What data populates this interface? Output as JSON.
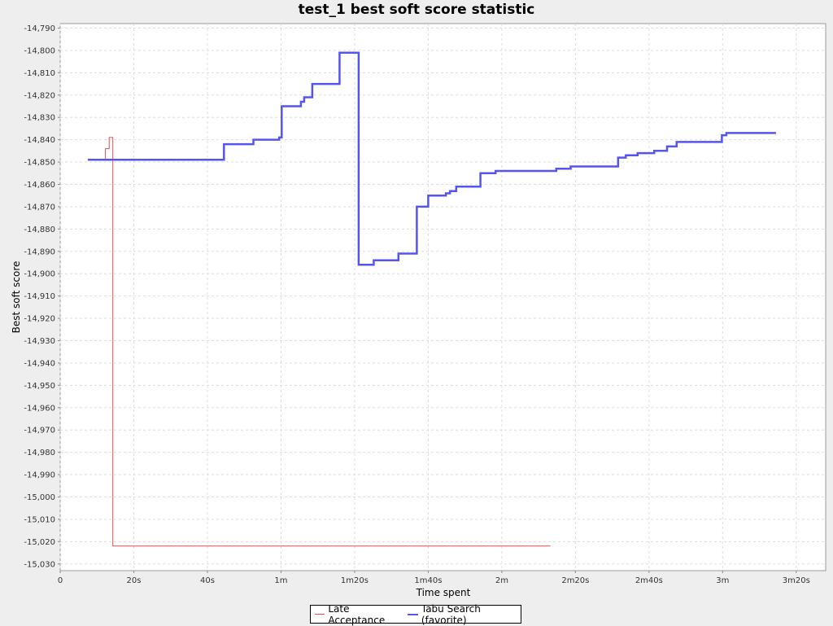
{
  "chart_data": {
    "type": "line",
    "title": "test_1 best soft score statistic",
    "xlabel": "Time spent",
    "ylabel": "Best soft score",
    "xlim": [
      0,
      208
    ],
    "ylim": [
      -15033,
      -14788
    ],
    "grid": true,
    "legend_position": "bottom",
    "x_ticks": [
      {
        "value": 0,
        "label": "0"
      },
      {
        "value": 20,
        "label": "20s"
      },
      {
        "value": 40,
        "label": "40s"
      },
      {
        "value": 60,
        "label": "1m"
      },
      {
        "value": 80,
        "label": "1m20s"
      },
      {
        "value": 100,
        "label": "1m40s"
      },
      {
        "value": 120,
        "label": "2m"
      },
      {
        "value": 140,
        "label": "2m20s"
      },
      {
        "value": 160,
        "label": "2m40s"
      },
      {
        "value": 180,
        "label": "3m"
      },
      {
        "value": 200,
        "label": "3m20s"
      }
    ],
    "y_ticks": [
      {
        "value": -14790,
        "label": "-14,790"
      },
      {
        "value": -14800,
        "label": "-14,800"
      },
      {
        "value": -14810,
        "label": "-14,810"
      },
      {
        "value": -14820,
        "label": "-14,820"
      },
      {
        "value": -14830,
        "label": "-14,830"
      },
      {
        "value": -14840,
        "label": "-14,840"
      },
      {
        "value": -14850,
        "label": "-14,850"
      },
      {
        "value": -14860,
        "label": "-14,860"
      },
      {
        "value": -14870,
        "label": "-14,870"
      },
      {
        "value": -14880,
        "label": "-14,880"
      },
      {
        "value": -14890,
        "label": "-14,890"
      },
      {
        "value": -14900,
        "label": "-14,900"
      },
      {
        "value": -14910,
        "label": "-14,910"
      },
      {
        "value": -14920,
        "label": "-14,920"
      },
      {
        "value": -14930,
        "label": "-14,930"
      },
      {
        "value": -14940,
        "label": "-14,940"
      },
      {
        "value": -14950,
        "label": "-14,950"
      },
      {
        "value": -14960,
        "label": "-14,960"
      },
      {
        "value": -14970,
        "label": "-14,970"
      },
      {
        "value": -14980,
        "label": "-14,980"
      },
      {
        "value": -14990,
        "label": "-14,990"
      },
      {
        "value": -15000,
        "label": "-15,000"
      },
      {
        "value": -15010,
        "label": "-15,010"
      },
      {
        "value": -15020,
        "label": "-15,020"
      },
      {
        "value": -15030,
        "label": "-15,030"
      }
    ],
    "series": [
      {
        "name": "Late Acceptance",
        "color": "#e05050",
        "stroke": 1,
        "points": [
          [
            9.7,
            -14849
          ],
          [
            12.3,
            -14849
          ],
          [
            12.3,
            -14844
          ],
          [
            13.3,
            -14844
          ],
          [
            13.3,
            -14839
          ],
          [
            14.3,
            -14839
          ],
          [
            14.3,
            -15022
          ],
          [
            133.2,
            -15022
          ]
        ]
      },
      {
        "name": "Tabu Search (favorite)",
        "color": "#5555ee",
        "stroke": 2.5,
        "points": [
          [
            7.5,
            -14849
          ],
          [
            44.5,
            -14849
          ],
          [
            44.5,
            -14842
          ],
          [
            52.5,
            -14842
          ],
          [
            52.5,
            -14840
          ],
          [
            59.5,
            -14840
          ],
          [
            59.5,
            -14839
          ],
          [
            60.2,
            -14839
          ],
          [
            60.2,
            -14825
          ],
          [
            65.4,
            -14825
          ],
          [
            65.4,
            -14823
          ],
          [
            66.3,
            -14823
          ],
          [
            66.3,
            -14821
          ],
          [
            68.5,
            -14821
          ],
          [
            68.5,
            -14815
          ],
          [
            75.9,
            -14815
          ],
          [
            75.9,
            -14801
          ],
          [
            81.1,
            -14801
          ],
          [
            81.1,
            -14896
          ],
          [
            85.2,
            -14896
          ],
          [
            85.2,
            -14894
          ],
          [
            91.9,
            -14894
          ],
          [
            91.9,
            -14891
          ],
          [
            96.9,
            -14891
          ],
          [
            96.9,
            -14870
          ],
          [
            100.0,
            -14870
          ],
          [
            100.0,
            -14865
          ],
          [
            104.8,
            -14865
          ],
          [
            104.8,
            -14864
          ],
          [
            105.9,
            -14864
          ],
          [
            105.9,
            -14863
          ],
          [
            107.6,
            -14863
          ],
          [
            107.6,
            -14861
          ],
          [
            114.2,
            -14861
          ],
          [
            114.2,
            -14855
          ],
          [
            118.3,
            -14855
          ],
          [
            118.3,
            -14854
          ],
          [
            134.8,
            -14854
          ],
          [
            134.8,
            -14853
          ],
          [
            138.7,
            -14853
          ],
          [
            138.7,
            -14852
          ],
          [
            151.6,
            -14852
          ],
          [
            151.6,
            -14848
          ],
          [
            153.7,
            -14848
          ],
          [
            153.7,
            -14847
          ],
          [
            156.9,
            -14847
          ],
          [
            156.9,
            -14846
          ],
          [
            161.4,
            -14846
          ],
          [
            161.4,
            -14845
          ],
          [
            164.9,
            -14845
          ],
          [
            164.9,
            -14843
          ],
          [
            167.5,
            -14843
          ],
          [
            167.5,
            -14841
          ],
          [
            179.8,
            -14841
          ],
          [
            179.8,
            -14838
          ],
          [
            181.0,
            -14838
          ],
          [
            181.0,
            -14837
          ],
          [
            194.5,
            -14837
          ]
        ]
      }
    ]
  }
}
